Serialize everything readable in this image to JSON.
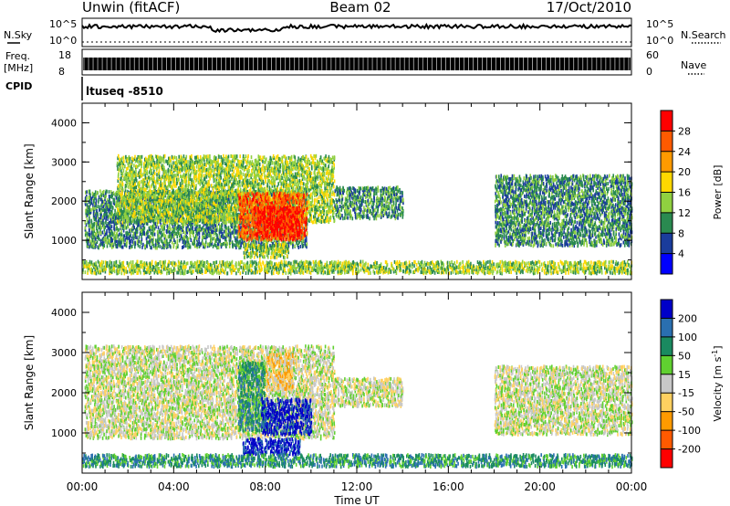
{
  "header": {
    "station": "Unwin (fitACF)",
    "beam": "Beam 02",
    "date": "17/Oct/2010"
  },
  "housekeeping": {
    "nsky": {
      "label": "N.Sky",
      "ticks": [
        "10^5",
        "10^0"
      ]
    },
    "nsearch": {
      "label": "N.Search",
      "ticks": [
        "10^5",
        "10^0"
      ]
    },
    "freq": {
      "label_line1": "Freq.",
      "label_line2": "[MHz]",
      "ticks": [
        "18",
        "8"
      ]
    },
    "nave": {
      "label": "Nave",
      "ticks": [
        "60",
        "0"
      ]
    },
    "cpid": {
      "label": "CPID",
      "value": "ltuseq -8510"
    }
  },
  "chart_data": [
    {
      "type": "heatmap",
      "quantity": "Power",
      "x": {
        "label": "Time UT",
        "range": [
          0,
          24
        ],
        "ticks": [
          "00:00",
          "04:00",
          "08:00",
          "12:00",
          "16:00",
          "20:00",
          "00:00"
        ]
      },
      "y": {
        "label": "Slant Range [km]",
        "range": [
          0,
          4500
        ],
        "ticks": [
          1000,
          2000,
          3000,
          4000
        ]
      },
      "colorbar": {
        "label": "Power [dB]",
        "ticks": [
          "28",
          "24",
          "20",
          "16",
          "12",
          "8",
          "4"
        ],
        "colors": [
          "#ff0000",
          "#ff5a00",
          "#ff9a00",
          "#ffd800",
          "#90d040",
          "#2a8a50",
          "#1a3c9c",
          "#0000ff"
        ]
      },
      "regions": [
        {
          "t0": 0.1,
          "t1": 9.8,
          "r0": 850,
          "r1": 2300,
          "level": 2
        },
        {
          "t0": 1.5,
          "t1": 11.0,
          "r0": 1500,
          "r1": 3200,
          "level": 3
        },
        {
          "t0": 6.8,
          "t1": 9.8,
          "r0": 1050,
          "r1": 2250,
          "level": 6
        },
        {
          "t0": 7.5,
          "t1": 9.5,
          "r0": 1150,
          "r1": 1900,
          "level": 7
        },
        {
          "t0": 11.0,
          "t1": 14.0,
          "r0": 1600,
          "r1": 2400,
          "level": 2
        },
        {
          "t0": 18.0,
          "t1": 24.0,
          "r0": 900,
          "r1": 2700,
          "level": 2
        },
        {
          "t0": 0.0,
          "t1": 24.0,
          "r0": 200,
          "r1": 500,
          "level": 3
        },
        {
          "t0": 7.0,
          "t1": 9.0,
          "r0": 600,
          "r1": 950,
          "level": 3
        }
      ]
    },
    {
      "type": "heatmap",
      "quantity": "Velocity",
      "x": {
        "label": "Time UT",
        "range": [
          0,
          24
        ],
        "ticks": [
          "00:00",
          "04:00",
          "08:00",
          "12:00",
          "16:00",
          "20:00",
          "00:00"
        ]
      },
      "y": {
        "label": "Slant Range [km]",
        "range": [
          0,
          4500
        ],
        "ticks": [
          1000,
          2000,
          3000,
          4000
        ]
      },
      "colorbar": {
        "label": "Velocity [m s^-1]",
        "ticks": [
          "200",
          "100",
          "50",
          "15",
          "-15",
          "-50",
          "-100",
          "-200"
        ],
        "colors": [
          "#0000c8",
          "#2a6fb0",
          "#1a8a60",
          "#60d030",
          "#c8c8c8",
          "#ffd060",
          "#ff9a00",
          "#ff5a00",
          "#ff0000"
        ]
      },
      "regions": [
        {
          "t0": 0.1,
          "t1": 11.0,
          "r0": 900,
          "r1": 3200,
          "level": 4
        },
        {
          "t0": 6.8,
          "t1": 8.0,
          "r0": 1100,
          "r1": 2800,
          "level": 6
        },
        {
          "t0": 7.8,
          "t1": 10.0,
          "r0": 1000,
          "r1": 1900,
          "level": 8
        },
        {
          "t0": 7.0,
          "t1": 9.5,
          "r0": 500,
          "r1": 900,
          "level": 8
        },
        {
          "t0": 8.0,
          "t1": 9.2,
          "r0": 2100,
          "r1": 3000,
          "level": 3
        },
        {
          "t0": 11.0,
          "t1": 14.0,
          "r0": 1700,
          "r1": 2400,
          "level": 4
        },
        {
          "t0": 18.0,
          "t1": 24.0,
          "r0": 1000,
          "r1": 2700,
          "level": 4
        },
        {
          "t0": 0.0,
          "t1": 24.0,
          "r0": 200,
          "r1": 500,
          "level": 6
        }
      ]
    }
  ]
}
